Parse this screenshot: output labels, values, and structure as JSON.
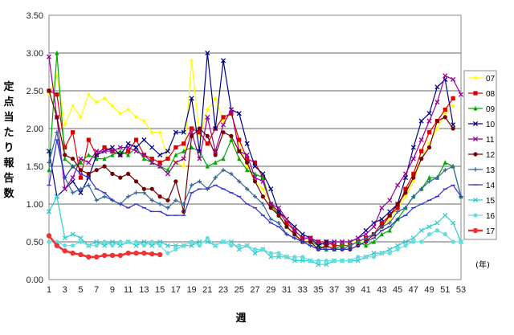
{
  "chart_data": {
    "type": "line",
    "ylabel": "定点当たり報告数",
    "xlabel": "週",
    "unit_label": "(年)",
    "ylim": [
      0,
      3.5
    ],
    "yticks": [
      "0.00",
      "0.50",
      "1.00",
      "1.50",
      "2.00",
      "2.50",
      "3.00",
      "3.50"
    ],
    "xlim": [
      1,
      53
    ],
    "xticks": [
      "1",
      "3",
      "5",
      "7",
      "9",
      "11",
      "13",
      "15",
      "17",
      "19",
      "21",
      "23",
      "25",
      "27",
      "29",
      "31",
      "33",
      "35",
      "37",
      "39",
      "41",
      "43",
      "45",
      "47",
      "49",
      "51",
      "53"
    ],
    "grid": true,
    "legend_position": "right",
    "series": [
      {
        "name": "07",
        "color": "#ffff00",
        "marker": "diamond",
        "values": [
          2.45,
          2.7,
          2.05,
          2.3,
          2.15,
          2.45,
          2.35,
          2.4,
          2.3,
          2.2,
          2.25,
          2.15,
          2.1,
          1.95,
          1.95,
          1.6,
          1.55,
          1.5,
          2.9,
          1.9,
          2.25,
          2.4,
          2.1,
          2.2,
          1.8,
          1.5,
          1.3,
          1.2,
          1.0,
          0.85,
          0.7,
          0.6,
          0.55,
          0.5,
          0.45,
          0.45,
          0.45,
          0.45,
          0.5,
          0.5,
          0.5,
          0.6,
          0.7,
          0.8,
          0.95,
          1.1,
          1.3,
          1.6,
          1.8,
          2.0,
          2.2,
          2.3
        ]
      },
      {
        "name": "08",
        "color": "#dd0000",
        "marker": "square",
        "values": [
          2.5,
          2.45,
          1.75,
          1.95,
          1.35,
          1.85,
          1.65,
          1.75,
          1.7,
          1.65,
          1.7,
          1.85,
          1.65,
          1.6,
          1.55,
          1.6,
          1.75,
          1.8,
          2.0,
          1.95,
          1.8,
          2.0,
          2.15,
          2.2,
          1.85,
          1.6,
          1.55,
          1.35,
          1.0,
          0.9,
          0.75,
          0.65,
          0.55,
          0.55,
          0.5,
          0.5,
          0.45,
          0.45,
          0.45,
          0.5,
          0.55,
          0.6,
          0.75,
          0.85,
          0.95,
          1.2,
          1.4,
          1.7,
          1.95,
          2.1,
          2.25,
          2.4
        ]
      },
      {
        "name": "09",
        "color": "#00aa00",
        "marker": "triangle",
        "values": [
          1.45,
          3.0,
          1.6,
          1.5,
          1.55,
          1.65,
          1.6,
          1.6,
          1.65,
          1.7,
          1.65,
          1.75,
          1.6,
          1.55,
          1.5,
          1.45,
          1.65,
          1.7,
          1.75,
          1.7,
          1.5,
          1.55,
          1.6,
          1.85,
          1.6,
          1.45,
          1.4,
          1.35,
          1.0,
          0.85,
          0.7,
          0.6,
          0.5,
          0.5,
          0.45,
          0.4,
          0.4,
          0.45,
          0.45,
          0.5,
          0.45,
          0.5,
          0.6,
          0.65,
          0.8,
          0.95,
          1.1,
          1.2,
          1.35,
          1.35,
          1.55,
          1.5,
          1.1
        ]
      },
      {
        "name": "10",
        "color": "#000088",
        "marker": "x",
        "values": [
          1.7,
          1.1,
          1.2,
          1.3,
          1.15,
          1.35,
          1.65,
          1.7,
          1.75,
          1.65,
          1.8,
          1.75,
          1.85,
          1.75,
          1.65,
          1.7,
          1.95,
          1.95,
          2.4,
          1.7,
          3.0,
          2.0,
          2.9,
          2.25,
          2.2,
          1.8,
          1.5,
          1.4,
          1.2,
          0.9,
          0.8,
          0.7,
          0.6,
          0.55,
          0.45,
          0.5,
          0.5,
          0.5,
          0.5,
          0.55,
          0.65,
          0.75,
          0.8,
          0.9,
          1.0,
          1.35,
          1.75,
          2.1,
          2.2,
          2.55,
          2.65,
          2.05
        ]
      },
      {
        "name": "11",
        "color": "#990099",
        "marker": "x",
        "values": [
          2.95,
          2.15,
          1.2,
          1.35,
          1.6,
          1.55,
          1.7,
          1.7,
          1.7,
          1.75,
          1.75,
          1.7,
          1.65,
          1.55,
          1.5,
          1.4,
          1.55,
          1.6,
          1.95,
          1.6,
          2.15,
          1.7,
          2.05,
          2.25,
          1.7,
          1.65,
          1.35,
          1.3,
          1.0,
          0.95,
          0.8,
          0.65,
          0.55,
          0.55,
          0.5,
          0.45,
          0.5,
          0.5,
          0.5,
          0.55,
          0.6,
          0.7,
          0.95,
          1.05,
          1.25,
          1.4,
          1.6,
          1.85,
          2.1,
          2.35,
          2.7,
          2.65,
          2.45
        ]
      },
      {
        "name": "12",
        "color": "#770000",
        "marker": "circle",
        "values": [
          2.5,
          2.15,
          1.65,
          1.6,
          1.45,
          1.4,
          1.45,
          1.5,
          1.4,
          1.35,
          1.4,
          1.3,
          1.2,
          1.2,
          1.1,
          1.05,
          1.3,
          0.9,
          1.9,
          2.0,
          1.9,
          1.65,
          1.95,
          1.9,
          1.7,
          1.55,
          1.3,
          1.1,
          0.95,
          0.85,
          0.7,
          0.6,
          0.5,
          0.5,
          0.4,
          0.45,
          0.4,
          0.4,
          0.4,
          0.45,
          0.5,
          0.6,
          0.7,
          0.85,
          1.0,
          1.15,
          1.35,
          1.6,
          1.75,
          2.1,
          2.15,
          2.0
        ]
      },
      {
        "name": "13",
        "color": "#336699",
        "marker": "plus",
        "values": [
          1.55,
          1.95,
          1.35,
          1.15,
          1.2,
          1.25,
          1.05,
          1.1,
          1.05,
          1.0,
          1.1,
          1.15,
          1.15,
          1.05,
          1.0,
          0.95,
          1.05,
          1.0,
          1.25,
          1.3,
          1.2,
          1.35,
          1.45,
          1.4,
          1.3,
          1.2,
          1.1,
          1.0,
          0.8,
          0.75,
          0.6,
          0.55,
          0.5,
          0.45,
          0.4,
          0.4,
          0.4,
          0.4,
          0.45,
          0.5,
          0.55,
          0.6,
          0.7,
          0.75,
          0.9,
          0.95,
          1.1,
          1.2,
          1.3,
          1.35,
          1.45,
          1.5,
          1.1
        ]
      },
      {
        "name": "14",
        "color": "#3333cc",
        "marker": "dash",
        "values": [
          1.25,
          1.85,
          1.35,
          1.5,
          1.4,
          1.35,
          1.2,
          1.15,
          1.05,
          1.0,
          0.95,
          1.0,
          0.95,
          0.9,
          0.9,
          0.85,
          0.85,
          0.85,
          1.15,
          1.2,
          1.2,
          1.25,
          1.2,
          1.15,
          1.1,
          1.0,
          0.95,
          0.85,
          0.75,
          0.7,
          0.6,
          0.55,
          0.5,
          0.45,
          0.4,
          0.4,
          0.4,
          0.4,
          0.4,
          0.45,
          0.5,
          0.55,
          0.65,
          0.7,
          0.8,
          0.85,
          0.95,
          1.0,
          1.05,
          1.1,
          1.2,
          1.25,
          1.1
        ]
      },
      {
        "name": "15",
        "color": "#33cccc",
        "marker": "x",
        "values": [
          0.9,
          1.1,
          0.55,
          0.6,
          0.55,
          0.45,
          0.5,
          0.45,
          0.5,
          0.45,
          0.5,
          0.45,
          0.5,
          0.45,
          0.5,
          0.45,
          0.45,
          0.45,
          0.45,
          0.5,
          0.5,
          0.45,
          0.5,
          0.5,
          0.4,
          0.45,
          0.35,
          0.4,
          0.3,
          0.3,
          0.3,
          0.25,
          0.25,
          0.25,
          0.2,
          0.2,
          0.25,
          0.25,
          0.25,
          0.25,
          0.3,
          0.35,
          0.35,
          0.4,
          0.45,
          0.5,
          0.55,
          0.65,
          0.7,
          0.75,
          0.85,
          0.75,
          0.5
        ]
      },
      {
        "name": "16",
        "color": "#66dddd",
        "marker": "circle",
        "values": [
          0.5,
          0.5,
          0.45,
          0.45,
          0.5,
          0.45,
          0.45,
          0.5,
          0.45,
          0.5,
          0.5,
          0.5,
          0.45,
          0.5,
          0.45,
          0.35,
          0.4,
          0.45,
          0.5,
          0.45,
          0.55,
          0.45,
          0.5,
          0.45,
          0.45,
          0.45,
          0.4,
          0.4,
          0.35,
          0.35,
          0.3,
          0.3,
          0.3,
          0.25,
          0.25,
          0.25,
          0.25,
          0.25,
          0.25,
          0.3,
          0.3,
          0.3,
          0.35,
          0.35,
          0.4,
          0.45,
          0.5,
          0.5,
          0.6,
          0.65,
          0.6,
          0.5,
          0.5
        ]
      },
      {
        "name": "17",
        "color": "#ee3333",
        "marker": "circle",
        "values": [
          0.58,
          0.45,
          0.38,
          0.35,
          0.33,
          0.3,
          0.3,
          0.32,
          0.32,
          0.32,
          0.35,
          0.35,
          0.35,
          0.34,
          0.33
        ]
      }
    ]
  }
}
